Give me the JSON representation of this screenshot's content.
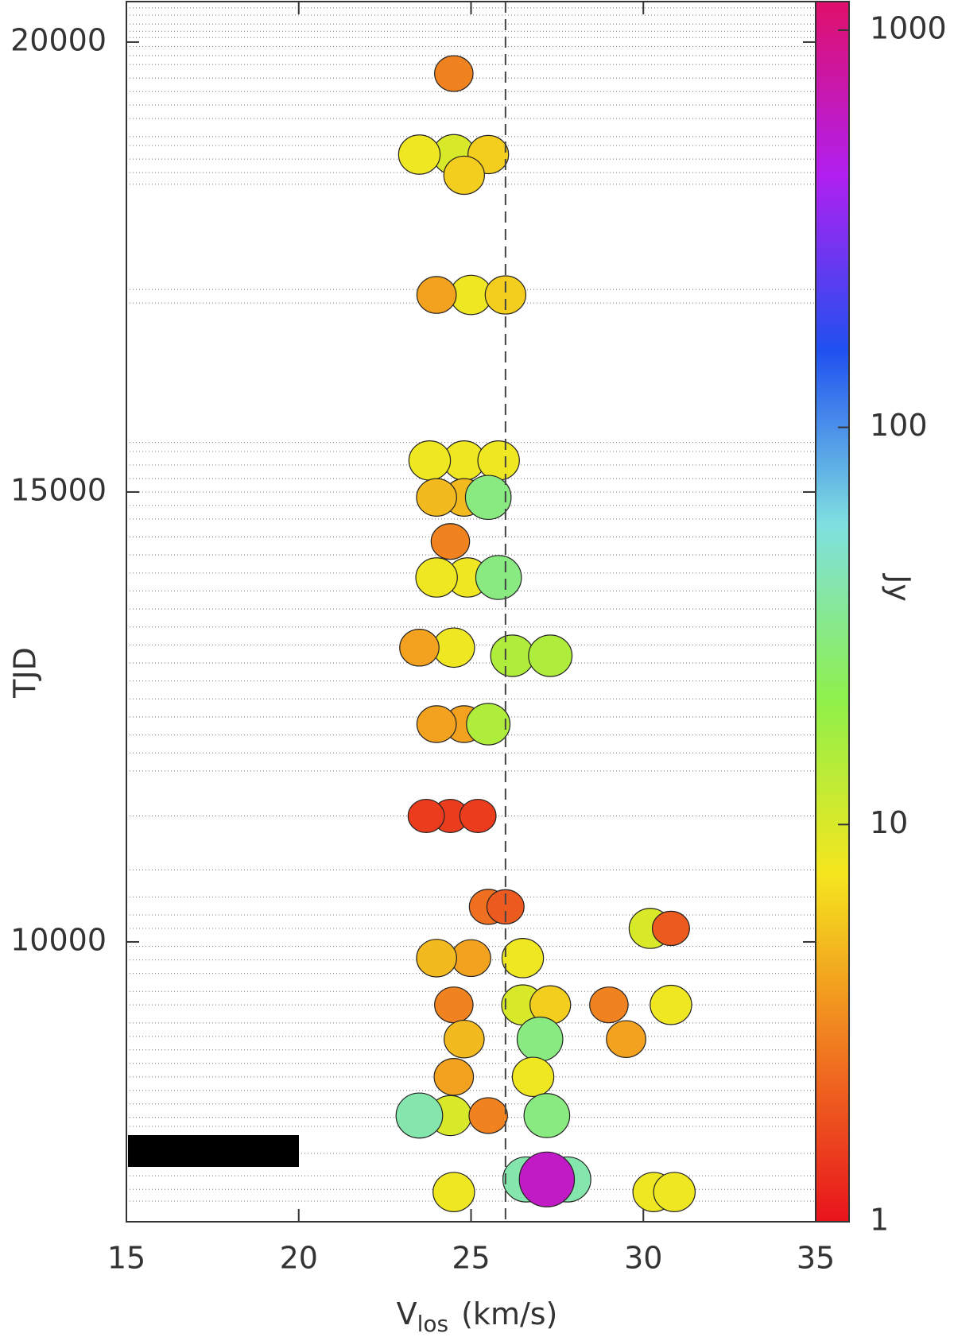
{
  "chart_data": {
    "type": "heatmap",
    "x_label": "V",
    "x_label_sub": "los",
    "x_label_unit": "(km/s)",
    "y_label": "TJD",
    "colorbar_label": "Jy",
    "xlim": [
      15,
      35
    ],
    "xticks": [
      15,
      20,
      25,
      30,
      35
    ],
    "ylim": [
      6890,
      20450
    ],
    "yticks": [
      10000,
      15000,
      20000
    ],
    "zlim": [
      1,
      1180
    ],
    "zticks": [
      1,
      10,
      100,
      1000
    ],
    "z_log": true,
    "colormap": [
      "#e8141c",
      "#f07a20",
      "#f5e61e",
      "#8ef04a",
      "#7fe0e0",
      "#2050f0",
      "#b020f0",
      "#e0106a"
    ],
    "reference_velocity": 26,
    "epochs": [
      20380,
      20300,
      20200,
      20120,
      20050,
      19950,
      19850,
      19750,
      19600,
      19450,
      19300,
      19150,
      18950,
      18850,
      18700,
      18550,
      18420,
      17250,
      17100,
      15550,
      15450,
      15300,
      15150,
      15000,
      14850,
      14700,
      14500,
      14300,
      14100,
      13900,
      13700,
      13500,
      13300,
      13100,
      12900,
      12700,
      12500,
      12300,
      12100,
      11900,
      11400,
      10800,
      10500,
      10300,
      10150,
      9950,
      9800,
      9650,
      9450,
      9300,
      9100,
      8950,
      8800,
      8650,
      8500,
      8350,
      8200,
      8050,
      7950,
      7650,
      7400,
      7250,
      7120
    ],
    "x": [
      24.5,
      24.5,
      23.5,
      25.5,
      24.8,
      25,
      24,
      26,
      24.8,
      25.8,
      23.8,
      24.8,
      24,
      25.5,
      24.4,
      24.9,
      24,
      25.8,
      24.5,
      23.5,
      26.2,
      27.3,
      24.8,
      24,
      25.5,
      24.4,
      25.2,
      23.7,
      25.5,
      26,
      30.2,
      30.8,
      25,
      24,
      26.5,
      26.5,
      27.3,
      24.5,
      30.8,
      29,
      27,
      29.5,
      24.8,
      26.8,
      24.5,
      24.4,
      25.5,
      27.2,
      23.5,
      26.6,
      27.8,
      27.2,
      24.5,
      30.3,
      30.9
    ],
    "y": [
      19650,
      18750,
      18750,
      18750,
      18520,
      17190,
      17190,
      17190,
      15350,
      15350,
      15350,
      14940,
      14940,
      14940,
      14450,
      14050,
      14050,
      14050,
      13270,
      13270,
      13180,
      13180,
      12420,
      12420,
      12420,
      11400,
      11400,
      11400,
      10390,
      10390,
      10150,
      10150,
      9820,
      9820,
      9820,
      9300,
      9300,
      9300,
      9300,
      9300,
      8920,
      8920,
      8920,
      8500,
      8500,
      8070,
      8070,
      8070,
      8070,
      7360,
      7360,
      7360,
      7220,
      7220,
      7220
    ],
    "values": [
      3,
      10,
      8,
      6,
      6,
      8,
      4,
      6,
      8,
      8,
      8,
      5,
      5,
      30,
      3,
      8,
      8,
      30,
      8,
      4,
      15,
      15,
      4,
      4,
      15,
      1.5,
      1.5,
      1.5,
      2.5,
      2,
      10,
      2,
      4,
      5,
      8,
      10,
      6,
      3,
      8,
      3,
      30,
      4,
      5,
      8,
      4,
      10,
      3,
      30,
      40,
      40,
      40,
      600,
      8,
      8,
      8
    ]
  }
}
